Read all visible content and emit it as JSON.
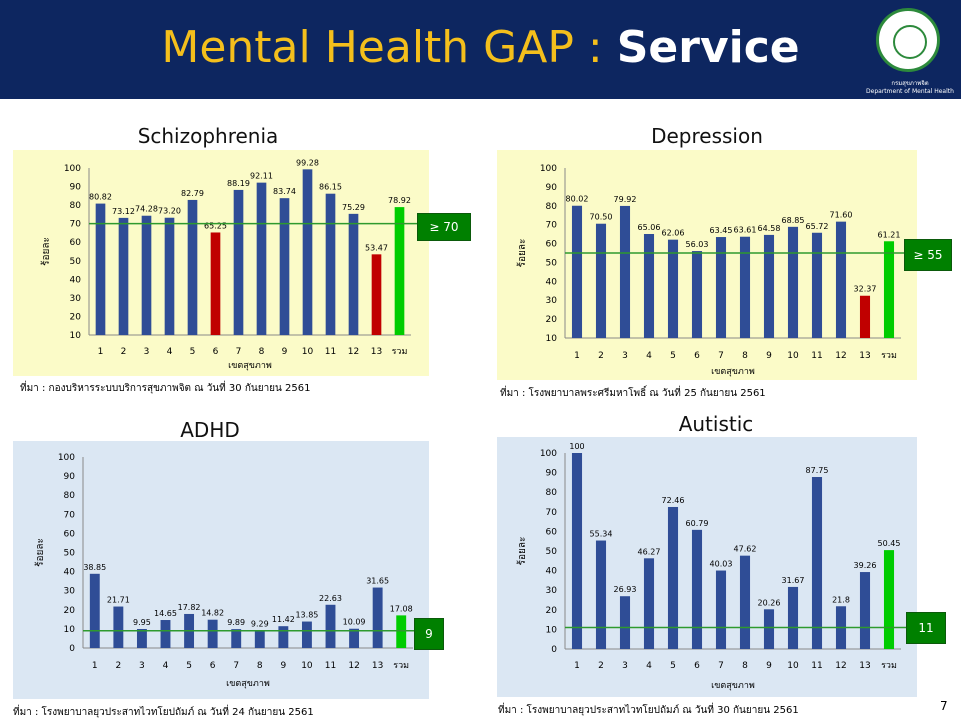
{
  "header": {
    "title_part1": "Mental Health GAP :",
    "title_part2": "Service",
    "logo_caption_1": "กรมสุขภาพจิต",
    "logo_caption_2": "Department of Mental Health"
  },
  "page_number": "7",
  "colors": {
    "header_bg": "#0d2660",
    "title_yellow": "#f4bf1c",
    "bar_blue": "#2f4d96",
    "bar_red": "#c00000",
    "bar_green": "#00cc00",
    "target_line": "#2e9a2e",
    "target_box": "#008000",
    "panel_yellow": "#fbfbc8",
    "panel_blue": "#dbe7f3"
  },
  "chart_data": [
    {
      "type": "bar",
      "title": "Schizophrenia",
      "categories": [
        "1",
        "2",
        "3",
        "4",
        "5",
        "6",
        "7",
        "8",
        "9",
        "10",
        "11",
        "12",
        "13",
        "รวม"
      ],
      "values": [
        80.82,
        73.12,
        74.28,
        73.2,
        82.79,
        65.25,
        88.19,
        92.11,
        83.74,
        99.28,
        86.15,
        75.29,
        53.47,
        78.92
      ],
      "labels": [
        "80.82",
        "73.12",
        "74.28",
        "73.20",
        "82.79",
        "65.25",
        "88.19",
        "92.11",
        "83.74",
        "99.28",
        "86.15",
        "75.29",
        "53.47",
        "78.92"
      ],
      "bar_colors": [
        "blue",
        "blue",
        "blue",
        "blue",
        "blue",
        "red",
        "blue",
        "blue",
        "blue",
        "blue",
        "blue",
        "blue",
        "red",
        "green"
      ],
      "ylim": [
        10,
        100
      ],
      "yticks": [
        "10",
        "20",
        "30",
        "40",
        "50",
        "60",
        "70",
        "80",
        "90",
        "100"
      ],
      "ylabel": "ร้อยละ",
      "xlabel": "เขตสุขภาพ",
      "target": 70,
      "target_label": "≥ 70",
      "source": "ที่มา : กองบริหารระบบบริการสุขภาพจิต ณ วันที่ 30 กันยายน 2561",
      "theme": "yellow"
    },
    {
      "type": "bar",
      "title": "Depression",
      "categories": [
        "1",
        "2",
        "3",
        "4",
        "5",
        "6",
        "7",
        "8",
        "9",
        "10",
        "11",
        "12",
        "13",
        "รวม"
      ],
      "values": [
        80.02,
        70.5,
        79.92,
        65.06,
        62.06,
        56.03,
        63.45,
        63.61,
        64.58,
        68.85,
        65.72,
        71.6,
        32.37,
        61.21
      ],
      "labels": [
        "80.02",
        "70.50",
        "79.92",
        "65.06",
        "62.06",
        "56.03",
        "63.45",
        "63.61",
        "64.58",
        "68.85",
        "65.72",
        "71.60",
        "32.37",
        "61.21"
      ],
      "bar_colors": [
        "blue",
        "blue",
        "blue",
        "blue",
        "blue",
        "blue",
        "blue",
        "blue",
        "blue",
        "blue",
        "blue",
        "blue",
        "red",
        "green"
      ],
      "ylim": [
        10,
        100
      ],
      "yticks": [
        "10",
        "20",
        "30",
        "40",
        "50",
        "60",
        "70",
        "80",
        "90",
        "100"
      ],
      "ylabel": "ร้อยละ",
      "xlabel": "เขตสุขภาพ",
      "target": 55,
      "target_label": "≥ 55",
      "source": "ที่มา : โรงพยาบาลพระศรีมหาโพธิ์ ณ วันที่ 25 กันยายน 2561",
      "theme": "yellow"
    },
    {
      "type": "bar",
      "title": "ADHD",
      "categories": [
        "1",
        "2",
        "3",
        "4",
        "5",
        "6",
        "7",
        "8",
        "9",
        "10",
        "11",
        "12",
        "13",
        "รวม"
      ],
      "values": [
        38.85,
        21.71,
        9.95,
        14.65,
        17.82,
        14.82,
        9.89,
        9.29,
        11.42,
        13.85,
        22.63,
        10.09,
        31.65,
        17.08
      ],
      "labels": [
        "38.85",
        "21.71",
        "9.95",
        "14.65",
        "17.82",
        "14.82",
        "9.89",
        "9.29",
        "11.42",
        "13.85",
        "22.63",
        "10.09",
        "31.65",
        "17.08"
      ],
      "bar_colors": [
        "blue",
        "blue",
        "blue",
        "blue",
        "blue",
        "blue",
        "blue",
        "blue",
        "blue",
        "blue",
        "blue",
        "blue",
        "blue",
        "green"
      ],
      "ylim": [
        0,
        100
      ],
      "yticks": [
        "0",
        "10",
        "20",
        "30",
        "40",
        "50",
        "60",
        "70",
        "80",
        "90",
        "100"
      ],
      "ylabel": "ร้อยละ",
      "xlabel": "เขตสุขภาพ",
      "target": 9,
      "target_label": "9",
      "source": "ที่มา : โรงพยาบาลยุวประสาทไวทโยปถัมภ์ ณ วันที่ 24 กันยายน 2561",
      "theme": "blue"
    },
    {
      "type": "bar",
      "title": "Autistic",
      "categories": [
        "1",
        "2",
        "3",
        "4",
        "5",
        "6",
        "7",
        "8",
        "9",
        "10",
        "11",
        "12",
        "13",
        "รวม"
      ],
      "values": [
        100,
        55.34,
        26.93,
        46.27,
        72.46,
        60.79,
        40.03,
        47.62,
        20.26,
        31.67,
        87.75,
        21.8,
        39.26,
        50.45
      ],
      "labels": [
        "100",
        "55.34",
        "26.93",
        "46.27",
        "72.46",
        "60.79",
        "40.03",
        "47.62",
        "20.26",
        "31.67",
        "87.75",
        "21.8",
        "39.26",
        "50.45"
      ],
      "bar_colors": [
        "blue",
        "blue",
        "blue",
        "blue",
        "blue",
        "blue",
        "blue",
        "blue",
        "blue",
        "blue",
        "blue",
        "blue",
        "blue",
        "green"
      ],
      "ylim": [
        0,
        100
      ],
      "yticks": [
        "0",
        "10",
        "20",
        "30",
        "40",
        "50",
        "60",
        "70",
        "80",
        "90",
        "100"
      ],
      "ylabel": "ร้อยละ",
      "xlabel": "เขตสุขภาพ",
      "target": 11,
      "target_label": "11",
      "source": "ที่มา : โรงพยาบาลยุวประสาทไวทโยปถัมภ์ ณ วันที่ 30 กันยายน 2561",
      "theme": "blue"
    }
  ]
}
